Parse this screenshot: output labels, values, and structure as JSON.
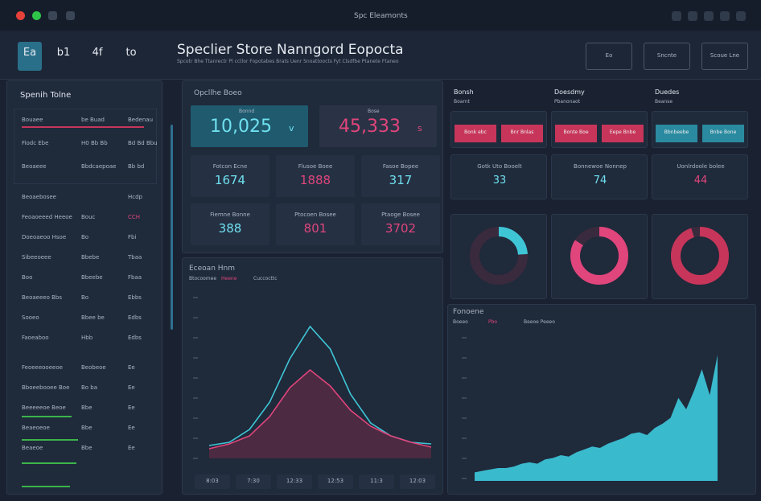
{
  "topbar": {
    "nav": "Spc Eleamonts"
  },
  "header": {
    "tabs": [
      "Ea",
      "b1",
      "4f",
      "to"
    ],
    "title": "Speclier Store Nanngord Eopocta",
    "subtitle": "Spcotr Bhe Ttanrectr Pl cctlor Fopotabes Brats Uenr Snoattoocts Fyt Clsdfbe Ptanete Ftaneo",
    "actions": [
      "Eo",
      "Sncnte",
      "Scoue Lne"
    ]
  },
  "sidebar": {
    "title": "Spenih Tolne",
    "rows": [
      [
        "Bouaee",
        "be Buad",
        "Bedenau"
      ],
      [
        "Fiodc Ebe",
        "H0 Bb Bb",
        "Bd Bd Bbu"
      ],
      [
        "Beoaeee",
        "Bbdcaepoae",
        "Bb bd"
      ],
      [
        "Beoaebosee",
        "",
        "Hcdp"
      ],
      [
        "Feoaoeeed Heeoe",
        "Bouc",
        "CCH"
      ],
      [
        "Doeoaeoo Hsoe",
        "Bo",
        "Fbi"
      ],
      [
        "Sibeeoeee",
        "Bbebe",
        "Tbaa"
      ],
      [
        "Boo",
        "Bbeebe",
        "Fbaa"
      ],
      [
        "Beoaeeeo Bbs",
        "Bo",
        "Ebbs"
      ],
      [
        "Sooeo",
        "Bbee be",
        "Edbs"
      ],
      [
        "Faoeaboo",
        "Hbb",
        "Edbs"
      ],
      [
        "Feoeeeooeeoe",
        "Beobeoe",
        "Ee"
      ],
      [
        "Bboeebooee Boe",
        "Bo ba",
        "Ee"
      ],
      [
        "Beeeeeoe Beoe",
        "Bbe",
        "Ee"
      ],
      [
        "Beaeoeoe",
        "Bbe",
        "Ee"
      ],
      [
        "Beaeoe",
        "Bbe",
        "Ee"
      ]
    ],
    "progress": [
      62,
      70,
      68,
      60
    ]
  },
  "kpis": {
    "title": "Opcllhe Boeo",
    "primary": [
      {
        "label": "Bonnd",
        "value": "10,025",
        "icon": "v"
      },
      {
        "label": "Bose",
        "value": "45,333",
        "icon": "s"
      }
    ],
    "cards": [
      {
        "label": "Fotcon Ecne",
        "value": "1674"
      },
      {
        "label": "Flusoe Boee",
        "value": "1888"
      },
      {
        "label": "Fasoe Bopee",
        "value": "317"
      },
      {
        "label": "Fiemne Bonne",
        "value": "388"
      },
      {
        "label": "Ptocoen Bosee",
        "value": "801"
      },
      {
        "label": "Ptaoge Bosee",
        "value": "3702"
      }
    ]
  },
  "line_chart": {
    "title": "Eceoan Hnm",
    "legend": [
      "Btocoomee",
      "Heene",
      "Cuccocttc"
    ],
    "series": [
      {
        "color": "#3fc6d6",
        "values": [
          8,
          10,
          18,
          35,
          62,
          82,
          68,
          40,
          22,
          14,
          10,
          9
        ]
      },
      {
        "color": "#e0457b",
        "values": [
          6,
          9,
          14,
          26,
          44,
          55,
          45,
          30,
          20,
          14,
          10,
          7
        ]
      }
    ],
    "ylim": [
      0,
      100
    ],
    "footer": [
      "8:03",
      "7:30",
      "12:33",
      "12:53",
      "11:3",
      "12:03"
    ]
  },
  "panels": [
    {
      "title": "Bonsh",
      "sub": "Boarnt",
      "buttons": [
        "Bonk ebc",
        "Bnr Bnlas"
      ]
    },
    {
      "title": "Doesdmy",
      "sub": "Pbanonaot",
      "buttons": [
        "Bonte Boe",
        "Eepe Bnbe"
      ]
    },
    {
      "title": "Duedes",
      "sub": "Beanse",
      "buttons": [
        "Bbnbeebe",
        "Bnbe Bone"
      ]
    }
  ],
  "stats": [
    {
      "label": "Gotk Uto Booelt",
      "value": "33"
    },
    {
      "label": "Bonnewoe Nonnep",
      "value": "74"
    },
    {
      "label": "Uonlrdoole bolee",
      "value": "44"
    }
  ],
  "donuts": {
    "values": [
      24,
      84,
      95
    ],
    "colors": [
      "#3fc6d6",
      "#e0457b",
      "#c7365a"
    ]
  },
  "area_chart": {
    "title": "Fonoene",
    "legend": [
      "Boeeo",
      "Pbo",
      "Beeoe Peeeo"
    ],
    "color": "#3fd4e8",
    "ylim": [
      0,
      100
    ],
    "values": [
      6,
      7,
      8,
      9,
      9,
      10,
      12,
      13,
      12,
      15,
      16,
      18,
      17,
      20,
      22,
      24,
      23,
      26,
      28,
      30,
      33,
      34,
      32,
      37,
      40,
      44,
      58,
      50,
      63,
      78,
      60,
      88
    ]
  }
}
